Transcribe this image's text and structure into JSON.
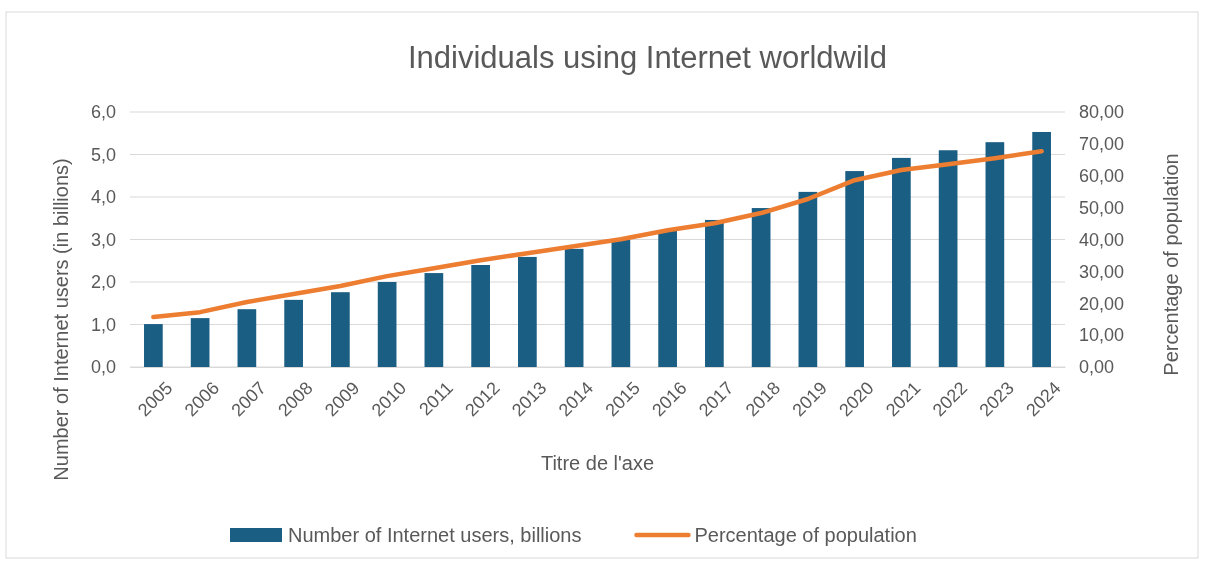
{
  "chart_data": {
    "type": "bar",
    "title": "Individuals using Internet worldwild",
    "xlabel": "Titre de l'axe",
    "ylabel": "Number of Internet users (in billions)",
    "y2label": "Percentage of population",
    "categories": [
      "2005",
      "2006",
      "2007",
      "2008",
      "2009",
      "2010",
      "2011",
      "2012",
      "2013",
      "2014",
      "2015",
      "2016",
      "2017",
      "2018",
      "2019",
      "2020",
      "2021",
      "2022",
      "2023",
      "2024"
    ],
    "series": [
      {
        "name": "Number of Internet users, billions",
        "color": "#1b5e84",
        "values": [
          1.01,
          1.15,
          1.36,
          1.58,
          1.76,
          2.0,
          2.21,
          2.4,
          2.59,
          2.78,
          2.99,
          3.2,
          3.46,
          3.74,
          4.12,
          4.61,
          4.92,
          5.1,
          5.29,
          5.53
        ]
      },
      {
        "name": "Percentage of population",
        "type": "line",
        "axis": "y2",
        "color": "#ed7d31",
        "values": [
          15.7,
          17.2,
          20.4,
          22.9,
          25.4,
          28.5,
          31.0,
          33.5,
          35.7,
          37.9,
          40.1,
          42.9,
          45.1,
          48.3,
          52.7,
          58.6,
          61.8,
          63.6,
          65.5,
          67.7
        ]
      }
    ],
    "ylim": [
      0,
      6
    ],
    "yticks": [
      {
        "value": 0,
        "label": "0,0"
      },
      {
        "value": 1,
        "label": "1,0"
      },
      {
        "value": 2,
        "label": "2,0"
      },
      {
        "value": 3,
        "label": "3,0"
      },
      {
        "value": 4,
        "label": "4,0"
      },
      {
        "value": 5,
        "label": "5,0"
      },
      {
        "value": 6,
        "label": "6,0"
      }
    ],
    "y2lim": [
      0,
      80
    ],
    "y2ticks": [
      {
        "value": 0,
        "label": "0,00"
      },
      {
        "value": 10,
        "label": "10,00"
      },
      {
        "value": 20,
        "label": "20,00"
      },
      {
        "value": 30,
        "label": "30,00"
      },
      {
        "value": 40,
        "label": "40,00"
      },
      {
        "value": 50,
        "label": "50,00"
      },
      {
        "value": 60,
        "label": "60,00"
      },
      {
        "value": 70,
        "label": "70,00"
      },
      {
        "value": 80,
        "label": "80,00"
      }
    ],
    "grid": "y",
    "legend": "bottom",
    "marker": "none",
    "line_style": "solid"
  }
}
